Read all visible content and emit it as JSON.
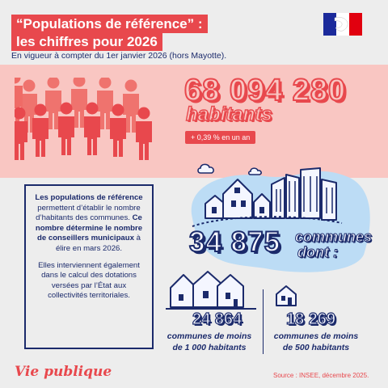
{
  "header": {
    "title_line1": "“Populations de référence” :",
    "title_line2": "les chiffres pour 2026",
    "subtitle": "En vigueur à compter du 1er janvier 2026 (hors Mayotte)."
  },
  "population": {
    "value": "68 094 280",
    "unit": "habitants",
    "change": "+ 0,39 % en un an"
  },
  "info_box": {
    "p1_bold1": "Les populations de référence",
    "p1_text1": " permettent d’établir le nombre d’habitants des communes. ",
    "p1_bold2": "Ce nombre détermine le nombre de conseillers municipaux",
    "p1_text2": " à élire en mars 2026.",
    "p2": "Elles interviennent également dans le calcul des dotations versées par l’État aux collectivités territoriales."
  },
  "communes": {
    "total": "34 875",
    "word": "communes",
    "dont": "dont :",
    "group1_value": "24 864",
    "group1_label_l1": "communes de moins",
    "group1_label_l2": "de 1 000 habitants",
    "group2_value": "18 269",
    "group2_label_l1": "communes de moins",
    "group2_label_l2": "de 500 habitants"
  },
  "footer": {
    "brand": "Vie publique",
    "source": "Source : INSEE, décembre 2025."
  },
  "colors": {
    "red": "#e8484d",
    "pink": "#f9c6c2",
    "navy": "#1b2a6b",
    "blue_blob": "#bcdcf5",
    "background": "#ededed"
  },
  "icons": [
    "marianne-logo-icon",
    "people-crowd-icon",
    "city-buildings-icon",
    "cloud-icon",
    "houses-group-icon",
    "small-house-icon"
  ]
}
